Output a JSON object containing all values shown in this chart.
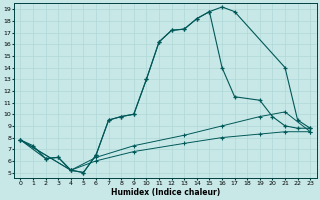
{
  "xlabel": "Humidex (Indice chaleur)",
  "bg_color": "#c8e8e8",
  "grid_color": "#b0d8d8",
  "line_color": "#005858",
  "xlim": [
    -0.5,
    23.5
  ],
  "ylim": [
    4.5,
    19.5
  ],
  "xticks": [
    0,
    1,
    2,
    3,
    4,
    5,
    6,
    7,
    8,
    9,
    10,
    11,
    12,
    13,
    14,
    15,
    16,
    17,
    18,
    19,
    20,
    21,
    22,
    23
  ],
  "yticks": [
    5,
    6,
    7,
    8,
    9,
    10,
    11,
    12,
    13,
    14,
    15,
    16,
    17,
    18,
    19
  ],
  "curve1_x": [
    0,
    1,
    2,
    3,
    4,
    5,
    6,
    7,
    8,
    9,
    10,
    11,
    12,
    13,
    14,
    15,
    16,
    17,
    21,
    22,
    23
  ],
  "curve1_y": [
    7.8,
    7.3,
    6.2,
    6.3,
    5.2,
    5.0,
    6.5,
    9.5,
    9.8,
    10.0,
    13.0,
    16.2,
    17.2,
    17.3,
    18.2,
    18.8,
    19.2,
    18.8,
    14.0,
    9.5,
    8.8
  ],
  "curve2_x": [
    0,
    2,
    3,
    4,
    5,
    6,
    7,
    8,
    9,
    10,
    11,
    12,
    13,
    14,
    15,
    16,
    17,
    19,
    20,
    21,
    22,
    23
  ],
  "curve2_y": [
    7.8,
    6.2,
    6.3,
    5.2,
    5.0,
    6.5,
    9.5,
    9.8,
    10.0,
    13.0,
    16.2,
    17.2,
    17.3,
    18.2,
    18.8,
    14.0,
    11.5,
    11.2,
    9.8,
    9.0,
    8.8,
    8.8
  ],
  "curve3_x": [
    0,
    4,
    6,
    9,
    13,
    16,
    19,
    21,
    23
  ],
  "curve3_y": [
    7.8,
    5.2,
    6.3,
    7.3,
    8.2,
    9.0,
    9.8,
    10.2,
    8.5
  ],
  "curve4_x": [
    0,
    4,
    6,
    9,
    13,
    16,
    19,
    21,
    23
  ],
  "curve4_y": [
    7.8,
    5.2,
    6.0,
    6.8,
    7.5,
    8.0,
    8.3,
    8.5,
    8.5
  ]
}
